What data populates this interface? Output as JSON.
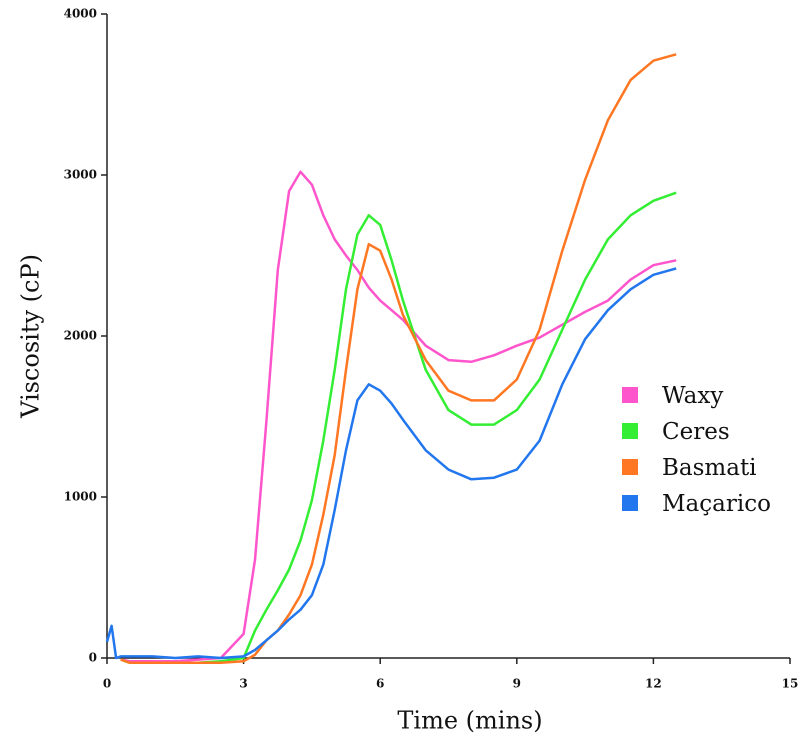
{
  "chart_data": {
    "type": "line",
    "x_label": "Time (mins)",
    "y_label": "Viscosity (cP)",
    "x": [
      0,
      0.1,
      0.2,
      0.3,
      0.5,
      1,
      1.5,
      2,
      2.5,
      3,
      3.25,
      3.5,
      3.75,
      4,
      4.25,
      4.5,
      4.75,
      5,
      5.25,
      5.5,
      5.75,
      6,
      6.25,
      6.5,
      7,
      7.5,
      8,
      8.5,
      9,
      9.5,
      10,
      10.5,
      11,
      11.5,
      12,
      12.5
    ],
    "series": [
      {
        "name": "Waxy",
        "color": "#ff55cc",
        "values": [
          null,
          null,
          null,
          -10,
          -20,
          -20,
          -20,
          -10,
          0,
          150,
          610,
          1470,
          2410,
          2900,
          3020,
          2940,
          2750,
          2600,
          2500,
          2410,
          2300,
          2220,
          2160,
          2100,
          1940,
          1850,
          1840,
          1880,
          1940,
          1990,
          2070,
          2150,
          2220,
          2350,
          2440,
          2470
        ]
      },
      {
        "name": "Ceres",
        "color": "#33ee33",
        "values": [
          null,
          null,
          null,
          -10,
          -30,
          -30,
          -30,
          -30,
          -20,
          0,
          170,
          300,
          420,
          550,
          730,
          980,
          1350,
          1790,
          2290,
          2630,
          2750,
          2690,
          2470,
          2220,
          1790,
          1540,
          1450,
          1450,
          1540,
          1730,
          2040,
          2350,
          2600,
          2750,
          2840,
          2890
        ]
      },
      {
        "name": "Basmati",
        "color": "#ff7722",
        "values": [
          null,
          null,
          null,
          -10,
          -30,
          -30,
          -30,
          -30,
          -30,
          -20,
          20,
          110,
          170,
          270,
          390,
          580,
          890,
          1260,
          1790,
          2290,
          2570,
          2530,
          2350,
          2130,
          1850,
          1660,
          1600,
          1600,
          1730,
          2040,
          2530,
          2970,
          3340,
          3590,
          3710,
          3750
        ]
      },
      {
        "name": "Maçarico",
        "color": "#2277ee",
        "values": [
          100,
          200,
          0,
          10,
          10,
          10,
          0,
          10,
          0,
          10,
          50,
          110,
          170,
          240,
          300,
          390,
          580,
          920,
          1290,
          1600,
          1700,
          1660,
          1580,
          1480,
          1290,
          1170,
          1110,
          1120,
          1170,
          1350,
          1700,
          1980,
          2160,
          2290,
          2380,
          2420
        ]
      }
    ],
    "xlim": [
      0,
      15
    ],
    "xticks": [
      0,
      3,
      6,
      9,
      12,
      15
    ],
    "ylim": [
      0,
      4000
    ],
    "yticks": [
      0,
      1000,
      2000,
      3000,
      4000
    ],
    "legend": "lower right"
  }
}
